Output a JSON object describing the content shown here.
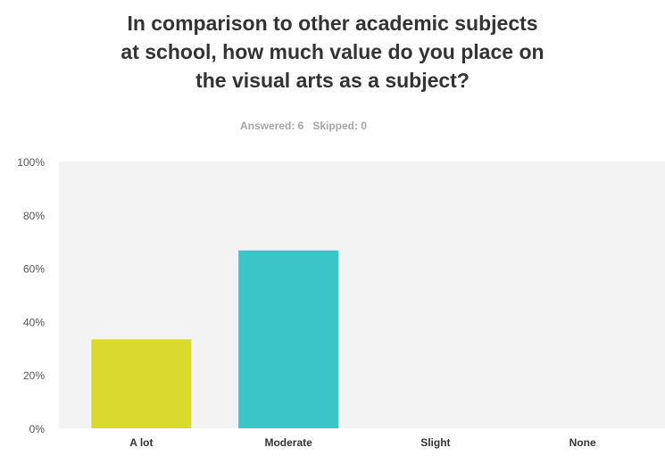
{
  "survey": {
    "title_lines": [
      "In comparison to other academic subjects",
      "at school, how much value do you place on",
      "the visual arts as a subject?"
    ],
    "answered": "Answered: 6",
    "skipped": "Skipped: 0"
  },
  "chart_data": {
    "type": "bar",
    "title": "In comparison to other academic subjects at school, how much value do you place on the visual arts as a subject?",
    "categories": [
      "A lot",
      "Moderate",
      "Slight",
      "None"
    ],
    "values": [
      33.33,
      66.67,
      0,
      0
    ],
    "unit": "%",
    "ylim": [
      0,
      100
    ],
    "yticks": [
      0,
      20,
      40,
      60,
      80,
      100
    ],
    "ytick_labels": [
      "0%",
      "20%",
      "40%",
      "60%",
      "80%",
      "100%"
    ],
    "colors": [
      "#d9d92e",
      "#3cc5c9",
      "#9b59b6",
      "#e67e22"
    ],
    "grid": false,
    "legend": "none",
    "plot_background": "#f3f3f3"
  }
}
